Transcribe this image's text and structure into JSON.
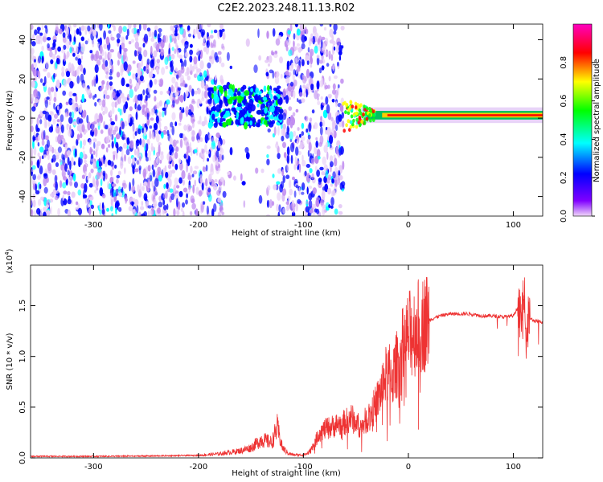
{
  "figure_title": "C2E2.2023.248.11.13.R02",
  "chart_data": [
    {
      "type": "heatmap",
      "title": "C2E2.2023.248.11.13.R02",
      "xlabel": "Height of straight line (km)",
      "ylabel": "Frequency (Hz)",
      "xlim": [
        -360,
        128
      ],
      "ylim": [
        -50,
        48
      ],
      "xticks": [
        -300,
        -200,
        -100,
        0,
        100
      ],
      "yticks": [
        -40,
        -20,
        0,
        20,
        40
      ],
      "colorbar": {
        "label": "Normalized spectral amplitude",
        "range": [
          0.0,
          1.0
        ],
        "ticks": [
          0.0,
          0.2,
          0.4,
          0.6,
          0.8
        ],
        "colormap": [
          "#f0d8f8",
          "#8000ff",
          "#0000ff",
          "#00ffff",
          "#00ff00",
          "#ffff00",
          "#ff0000",
          "#ff00c0"
        ]
      },
      "regions": [
        {
          "x_range": [
            -360,
            -180
          ],
          "description": "broadband noise",
          "amplitude": 0.15
        },
        {
          "x_range": [
            -190,
            -120
          ],
          "y_range": [
            -4,
            16
          ],
          "description": "cluster",
          "amplitude": 0.35
        },
        {
          "x_range": [
            -60,
            128
          ],
          "y_center": 1.5,
          "description": "carrier line",
          "amplitude": 0.85
        }
      ]
    },
    {
      "type": "line",
      "title": "",
      "xlabel": "Height of straight line (km)",
      "ylabel": "SNR (10 * v/v)",
      "y_multiplier_label": "(x10",
      "y_multiplier_exp": "4",
      "y_multiplier_close": ")",
      "xlim": [
        -360,
        128
      ],
      "ylim": [
        0,
        19000
      ],
      "xticks": [
        -300,
        -200,
        -100,
        0,
        100
      ],
      "yticks": [
        0,
        5000,
        10000,
        15000
      ],
      "ytick_labels": [
        "0.0",
        "0.5",
        "1.0",
        "1.5"
      ],
      "series": [
        {
          "name": "SNR",
          "color": "#ee3333",
          "x": [
            -360,
            -300,
            -250,
            -200,
            -180,
            -160,
            -150,
            -140,
            -130,
            -125,
            -122,
            -120,
            -115,
            -110,
            -100,
            -95,
            -90,
            -85,
            -80,
            -70,
            -60,
            -55,
            -50,
            -45,
            -40,
            -35,
            -30,
            -25,
            -20,
            -15,
            -10,
            -5,
            0,
            5,
            10,
            15,
            20,
            25,
            30,
            35,
            40,
            50,
            60,
            70,
            80,
            90,
            100,
            105,
            108,
            110,
            112,
            115,
            120,
            128
          ],
          "values": [
            150,
            150,
            180,
            250,
            400,
            700,
            1000,
            1800,
            1500,
            3000,
            1800,
            1000,
            500,
            300,
            300,
            500,
            1200,
            2500,
            2800,
            3200,
            3500,
            4000,
            3500,
            3000,
            3800,
            4500,
            5500,
            7000,
            8500,
            8000,
            9500,
            11000,
            12000,
            12500,
            13000,
            13300,
            13600,
            13800,
            14000,
            14100,
            14200,
            14200,
            14200,
            14000,
            14000,
            13900,
            14000,
            15000,
            13000,
            17000,
            12000,
            13800,
            13500,
            13400
          ]
        }
      ]
    }
  ]
}
